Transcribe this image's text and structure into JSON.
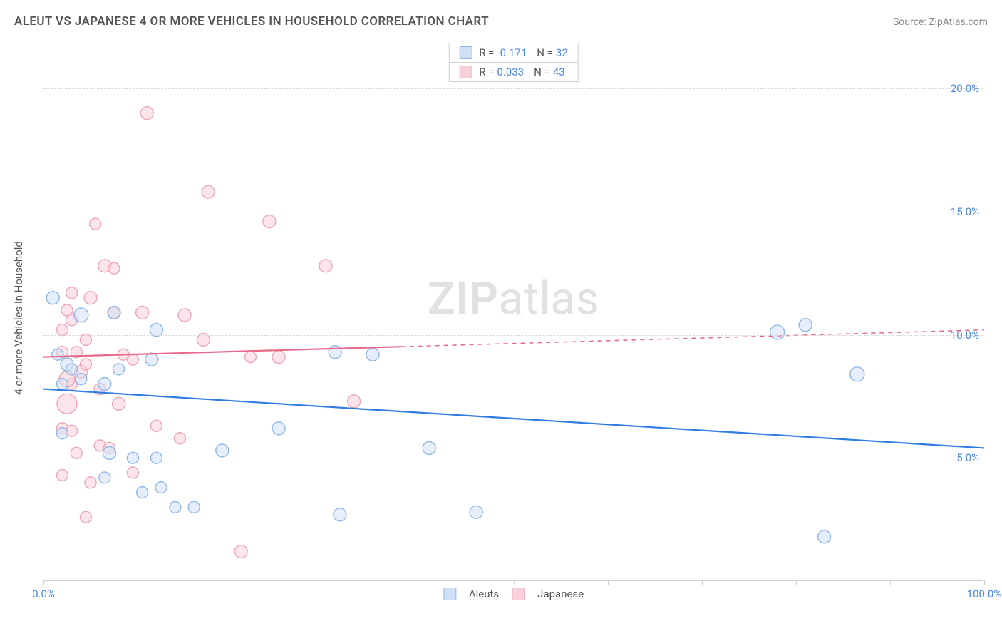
{
  "title": "ALEUT VS JAPANESE 4 OR MORE VEHICLES IN HOUSEHOLD CORRELATION CHART",
  "source_label": "Source:",
  "source_value": "ZipAtlas.com",
  "watermark": {
    "bold": "ZIP",
    "rest": "atlas"
  },
  "ylabel": "4 or more Vehicles in Household",
  "chart": {
    "type": "scatter-with-trend",
    "background_color": "#ffffff",
    "grid_color": "#d9d9d9",
    "axis_color": "#cfcfcf",
    "label_color": "#4a86e8",
    "text_color": "#555555",
    "title_fontsize": 17,
    "label_fontsize": 15,
    "watermark_fontsize": 64,
    "xlim": [
      0,
      100
    ],
    "ylim": [
      0,
      22
    ],
    "x_ticks": [
      0,
      10,
      20,
      30,
      40,
      50,
      60,
      70,
      80,
      90,
      100
    ],
    "x_tick_labels": {
      "0": "0.0%",
      "100": "100.0%"
    },
    "y_grid": [
      5,
      10,
      15,
      20
    ],
    "y_tick_labels": {
      "5": "5.0%",
      "10": "10.0%",
      "15": "15.0%",
      "20": "20.0%"
    },
    "series": [
      {
        "id": "aleuts",
        "label": "Aleuts",
        "color": "#8fb8ea",
        "fill": "#cfe0f6",
        "fill_opacity": 0.55,
        "marker_stroke_width": 1.4,
        "trend_color": "#2f7de1",
        "trend_width": 2.2,
        "R": "-0.171",
        "N": "32",
        "trend": {
          "x0": 0,
          "y0": 7.8,
          "x1": 100,
          "y1": 5.4,
          "solid_until_x": 100
        },
        "points": [
          {
            "x": 1.0,
            "y": 11.5,
            "r": 9
          },
          {
            "x": 2.5,
            "y": 8.8,
            "r": 9
          },
          {
            "x": 3.0,
            "y": 8.6,
            "r": 8
          },
          {
            "x": 2.0,
            "y": 8.0,
            "r": 8
          },
          {
            "x": 1.5,
            "y": 9.2,
            "r": 8
          },
          {
            "x": 4.0,
            "y": 10.8,
            "r": 10
          },
          {
            "x": 6.5,
            "y": 8.0,
            "r": 9
          },
          {
            "x": 7.5,
            "y": 10.9,
            "r": 9
          },
          {
            "x": 12.0,
            "y": 10.2,
            "r": 9
          },
          {
            "x": 11.5,
            "y": 9.0,
            "r": 9
          },
          {
            "x": 8.0,
            "y": 8.6,
            "r": 8
          },
          {
            "x": 14.0,
            "y": 3.0,
            "r": 8
          },
          {
            "x": 16.0,
            "y": 3.0,
            "r": 8
          },
          {
            "x": 12.0,
            "y": 5.0,
            "r": 8
          },
          {
            "x": 9.5,
            "y": 5.0,
            "r": 8
          },
          {
            "x": 7.0,
            "y": 5.2,
            "r": 9
          },
          {
            "x": 10.5,
            "y": 3.6,
            "r": 8
          },
          {
            "x": 6.5,
            "y": 4.2,
            "r": 8
          },
          {
            "x": 12.5,
            "y": 3.8,
            "r": 8
          },
          {
            "x": 19.0,
            "y": 5.3,
            "r": 9
          },
          {
            "x": 25.0,
            "y": 6.2,
            "r": 9
          },
          {
            "x": 31.0,
            "y": 9.3,
            "r": 9
          },
          {
            "x": 31.5,
            "y": 2.7,
            "r": 9
          },
          {
            "x": 35.0,
            "y": 9.2,
            "r": 9
          },
          {
            "x": 41.0,
            "y": 5.4,
            "r": 9
          },
          {
            "x": 46.0,
            "y": 2.8,
            "r": 9
          },
          {
            "x": 78.0,
            "y": 10.1,
            "r": 10
          },
          {
            "x": 81.0,
            "y": 10.4,
            "r": 9
          },
          {
            "x": 86.5,
            "y": 8.4,
            "r": 10
          },
          {
            "x": 83.0,
            "y": 1.8,
            "r": 9
          },
          {
            "x": 2.0,
            "y": 6.0,
            "r": 8
          },
          {
            "x": 4.0,
            "y": 8.2,
            "r": 8
          }
        ]
      },
      {
        "id": "japanese",
        "label": "Japanese",
        "color": "#eea6b7",
        "fill": "#f7d0d9",
        "fill_opacity": 0.55,
        "marker_stroke_width": 1.4,
        "trend_color": "#e76a8a",
        "trend_width": 2.2,
        "R": "0.033",
        "N": "43",
        "trend": {
          "x0": 0,
          "y0": 9.1,
          "x1": 100,
          "y1": 10.2,
          "solid_until_x": 38
        },
        "points": [
          {
            "x": 11.0,
            "y": 19.0,
            "r": 9
          },
          {
            "x": 17.5,
            "y": 15.8,
            "r": 9
          },
          {
            "x": 24.0,
            "y": 14.6,
            "r": 9
          },
          {
            "x": 5.5,
            "y": 14.5,
            "r": 8
          },
          {
            "x": 6.5,
            "y": 12.8,
            "r": 9
          },
          {
            "x": 7.5,
            "y": 12.7,
            "r": 8
          },
          {
            "x": 5.0,
            "y": 11.5,
            "r": 9
          },
          {
            "x": 3.0,
            "y": 11.7,
            "r": 8
          },
          {
            "x": 3.0,
            "y": 10.6,
            "r": 8
          },
          {
            "x": 2.0,
            "y": 10.2,
            "r": 8
          },
          {
            "x": 7.5,
            "y": 10.9,
            "r": 8
          },
          {
            "x": 8.5,
            "y": 9.2,
            "r": 8
          },
          {
            "x": 9.5,
            "y": 9.0,
            "r": 8
          },
          {
            "x": 10.5,
            "y": 10.9,
            "r": 9
          },
          {
            "x": 15.0,
            "y": 10.8,
            "r": 9
          },
          {
            "x": 17.0,
            "y": 9.8,
            "r": 9
          },
          {
            "x": 22.0,
            "y": 9.1,
            "r": 8
          },
          {
            "x": 25.0,
            "y": 9.1,
            "r": 9
          },
          {
            "x": 30.0,
            "y": 12.8,
            "r": 9
          },
          {
            "x": 33.0,
            "y": 7.3,
            "r": 9
          },
          {
            "x": 2.5,
            "y": 7.2,
            "r": 14
          },
          {
            "x": 4.0,
            "y": 8.5,
            "r": 9
          },
          {
            "x": 3.5,
            "y": 9.3,
            "r": 8
          },
          {
            "x": 2.0,
            "y": 9.3,
            "r": 8
          },
          {
            "x": 4.5,
            "y": 8.8,
            "r": 8
          },
          {
            "x": 6.0,
            "y": 7.8,
            "r": 8
          },
          {
            "x": 3.0,
            "y": 8.0,
            "r": 8
          },
          {
            "x": 2.5,
            "y": 8.2,
            "r": 11
          },
          {
            "x": 8.0,
            "y": 7.2,
            "r": 9
          },
          {
            "x": 6.0,
            "y": 5.5,
            "r": 8
          },
          {
            "x": 7.0,
            "y": 5.4,
            "r": 8
          },
          {
            "x": 9.5,
            "y": 4.4,
            "r": 8
          },
          {
            "x": 5.0,
            "y": 4.0,
            "r": 8
          },
          {
            "x": 4.5,
            "y": 2.6,
            "r": 8
          },
          {
            "x": 12.0,
            "y": 6.3,
            "r": 8
          },
          {
            "x": 14.5,
            "y": 5.8,
            "r": 8
          },
          {
            "x": 21.0,
            "y": 1.2,
            "r": 9
          },
          {
            "x": 2.0,
            "y": 6.2,
            "r": 8
          },
          {
            "x": 3.0,
            "y": 6.1,
            "r": 8
          },
          {
            "x": 3.5,
            "y": 5.2,
            "r": 8
          },
          {
            "x": 2.0,
            "y": 4.3,
            "r": 8
          },
          {
            "x": 4.5,
            "y": 9.8,
            "r": 8
          },
          {
            "x": 2.5,
            "y": 11.0,
            "r": 8
          }
        ]
      }
    ],
    "legend_bottom": [
      {
        "label": "Aleuts",
        "fill": "#cfe0f6",
        "stroke": "#8fb8ea"
      },
      {
        "label": "Japanese",
        "fill": "#f7d0d9",
        "stroke": "#eea6b7"
      }
    ]
  }
}
